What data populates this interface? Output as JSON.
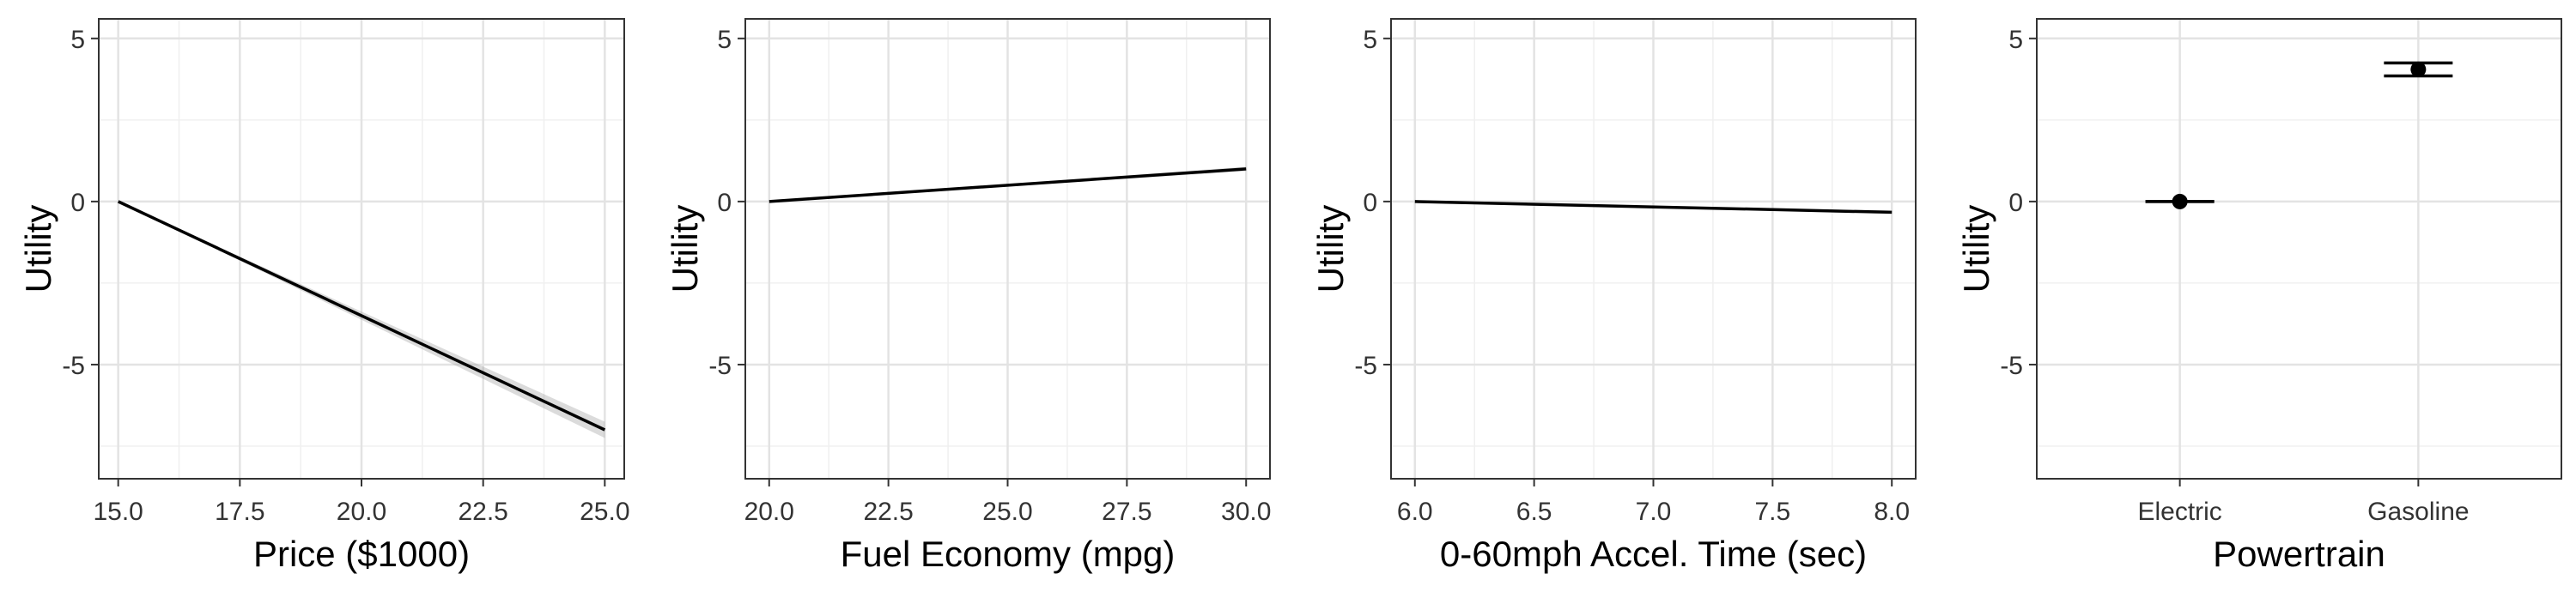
{
  "chart_data": [
    {
      "type": "line",
      "xlabel": "Price ($1000)",
      "ylabel": "Utility",
      "xlim": [
        14.6,
        25.4
      ],
      "ylim": [
        -8.5,
        5.6
      ],
      "x_ticks": [
        15.0,
        17.5,
        20.0,
        22.5,
        25.0
      ],
      "x_tick_labels": [
        "15.0",
        "17.5",
        "20.0",
        "22.5",
        "25.0"
      ],
      "y_ticks": [
        5,
        0,
        -5
      ],
      "y_tick_labels": [
        "5",
        "0",
        "-5"
      ],
      "grid": true,
      "series": [
        {
          "x": [
            15,
            25
          ],
          "y": [
            0,
            -7.0
          ],
          "ci_lower": [
            0,
            -7.25
          ],
          "ci_upper": [
            0,
            -6.75
          ]
        }
      ]
    },
    {
      "type": "line",
      "xlabel": "Fuel Economy (mpg)",
      "ylabel": "Utility",
      "xlim": [
        19.5,
        30.5
      ],
      "ylim": [
        -8.5,
        5.6
      ],
      "x_ticks": [
        20.0,
        22.5,
        25.0,
        27.5,
        30.0
      ],
      "x_tick_labels": [
        "20.0",
        "22.5",
        "25.0",
        "27.5",
        "30.0"
      ],
      "y_ticks": [
        5,
        0,
        -5
      ],
      "y_tick_labels": [
        "5",
        "0",
        "-5"
      ],
      "grid": true,
      "series": [
        {
          "x": [
            20,
            30
          ],
          "y": [
            0,
            1.0
          ],
          "ci_lower": [
            0,
            0.93
          ],
          "ci_upper": [
            0,
            1.07
          ]
        }
      ]
    },
    {
      "type": "line",
      "xlabel": "0-60mph Accel. Time (sec)",
      "ylabel": "Utility",
      "xlim": [
        5.9,
        8.1
      ],
      "ylim": [
        -8.5,
        5.6
      ],
      "x_ticks": [
        6.0,
        6.5,
        7.0,
        7.5,
        8.0
      ],
      "x_tick_labels": [
        "6.0",
        "6.5",
        "7.0",
        "7.5",
        "8.0"
      ],
      "y_ticks": [
        5,
        0,
        -5
      ],
      "y_tick_labels": [
        "5",
        "0",
        "-5"
      ],
      "grid": true,
      "series": [
        {
          "x": [
            6,
            8
          ],
          "y": [
            0,
            -0.33
          ],
          "ci_lower": [
            0,
            -0.38
          ],
          "ci_upper": [
            0,
            -0.28
          ]
        }
      ]
    },
    {
      "type": "scatter",
      "xlabel": "Powertrain",
      "ylabel": "Utility",
      "categories": [
        "Electric",
        "Gasoline"
      ],
      "ylim": [
        -8.5,
        5.6
      ],
      "y_ticks": [
        5,
        0,
        -5
      ],
      "y_tick_labels": [
        "5",
        "0",
        "-5"
      ],
      "grid": true,
      "series": [
        {
          "values": [
            0,
            4.05
          ],
          "err_lower": [
            0,
            3.85
          ],
          "err_upper": [
            0,
            4.25
          ]
        }
      ]
    }
  ]
}
